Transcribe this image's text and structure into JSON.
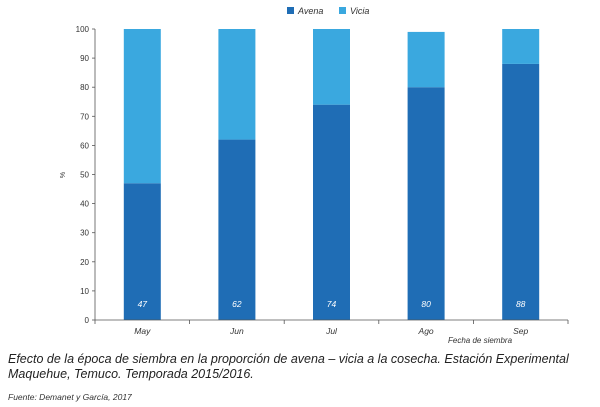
{
  "chart_data": {
    "type": "bar",
    "stacked": true,
    "categories": [
      "May",
      "Jun",
      "Jul",
      "Ago",
      "Sep"
    ],
    "series": [
      {
        "name": "Avena",
        "color": "#1f6db5",
        "values": [
          47,
          62,
          74,
          80,
          88
        ]
      },
      {
        "name": "Vicia",
        "color": "#3aa8df",
        "values": [
          53,
          38,
          26,
          19,
          12
        ]
      }
    ],
    "data_labels": [
      "47",
      "62",
      "74",
      "80",
      "88"
    ],
    "ylabel": "%",
    "xlabel": "Fecha de siembra",
    "ylim": [
      0,
      100
    ],
    "yticks": [
      0,
      10,
      20,
      30,
      40,
      50,
      60,
      70,
      80,
      90,
      100
    ],
    "legend_position": "top",
    "grid": false
  },
  "caption": "Efecto de la época de siembra en la proporción de avena – vicia a la cosecha. Estación Experimental Maquehue, Temuco. Temporada 2015/2016.",
  "source": "Fuente: Demanet y García, 2017"
}
